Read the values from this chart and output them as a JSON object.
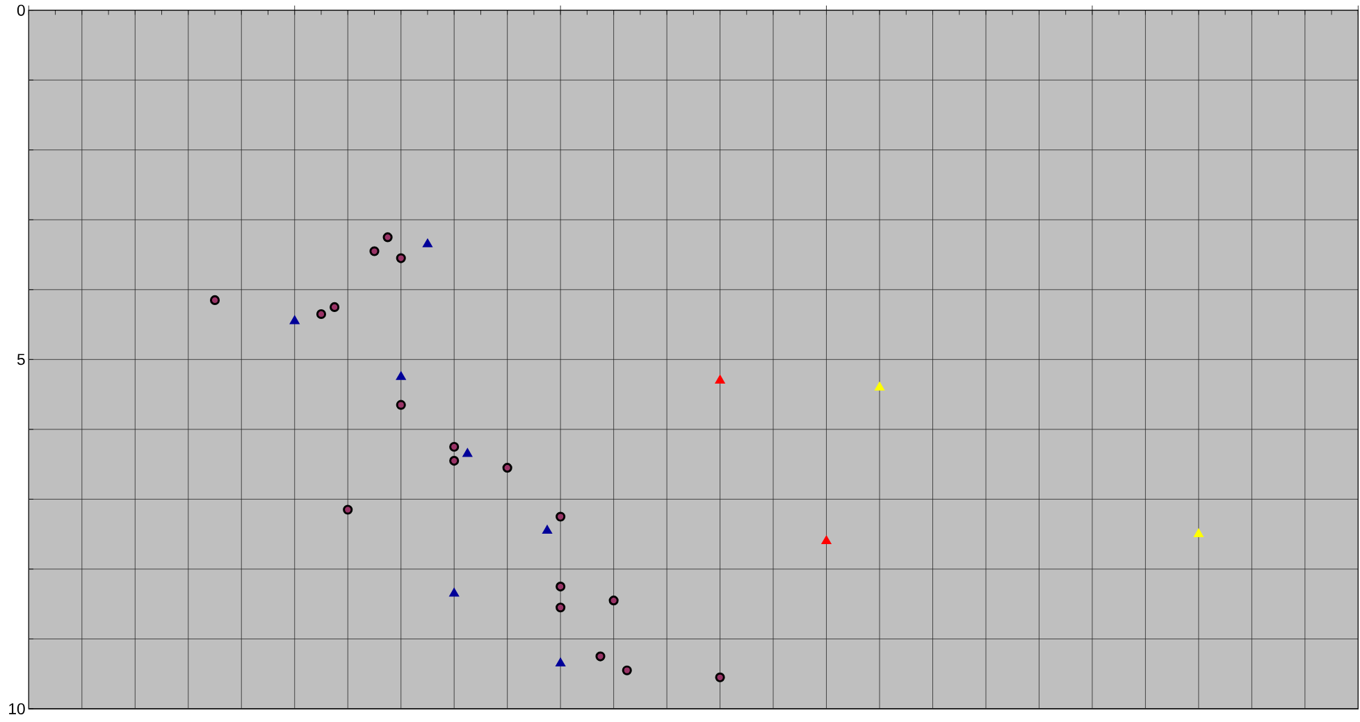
{
  "chart_data": {
    "type": "scatter",
    "tick_labels": "y",
    "grid": true,
    "categories": [
      null,
      null,
      null,
      null,
      null,
      null,
      null,
      null,
      null,
      null,
      null,
      null,
      null,
      null,
      null,
      null,
      null,
      null,
      null,
      null,
      null,
      null,
      null,
      null,
      null,
      null,
      null,
      null,
      null,
      null,
      null,
      null,
      null,
      null,
      null,
      null,
      null,
      null,
      null,
      null,
      null,
      null,
      null,
      null,
      null,
      null,
      null,
      null,
      null,
      null,
      null,
      null,
      null,
      null,
      null,
      null,
      null,
      null,
      null,
      null,
      null,
      null,
      null,
      null,
      null,
      null,
      null,
      null,
      null,
      null,
      null,
      null,
      null,
      null,
      null,
      null,
      null,
      null,
      null,
      null,
      null,
      null,
      null,
      null,
      null,
      null,
      null,
      null,
      null,
      null,
      null,
      null,
      null,
      null,
      null,
      null,
      null,
      null,
      null,
      null,
      null
    ],
    "ylim": [
      10,
      0
    ],
    "yticks": [
      0,
      {
        "value": 1,
        "label": null
      },
      {
        "value": 2,
        "label": null
      },
      {
        "value": 3,
        "label": null
      },
      {
        "value": 4,
        "label": null
      },
      5,
      {
        "value": 6,
        "label": null
      },
      {
        "value": 7,
        "label": null
      },
      {
        "value": 8,
        "label": null
      },
      {
        "value": 9,
        "label": null
      },
      10
    ],
    "series": [
      {
        "color": "#993366",
        "marker": "circle",
        "values": [
          null,
          null,
          null,
          null,
          null,
          null,
          null,
          null,
          null,
          null,
          null,
          null,
          null,
          null,
          4.15,
          null,
          null,
          null,
          null,
          null,
          null,
          null,
          4.35,
          4.25,
          7.15,
          null,
          3.45,
          3.25,
          3.55,
          null,
          null,
          null,
          6.25,
          null,
          null,
          null,
          6.55,
          null,
          null,
          null,
          7.25,
          null,
          null,
          9.25,
          8.45,
          9.45,
          null,
          null,
          null,
          null,
          null,
          null,
          9.55,
          null,
          null,
          null,
          null,
          null,
          null,
          null,
          null,
          null,
          null,
          null,
          null,
          null,
          null,
          null,
          null,
          null,
          null,
          null,
          null,
          null,
          null,
          null,
          null,
          null,
          null,
          null,
          null,
          null,
          null,
          null,
          null,
          null,
          null,
          null,
          null,
          null,
          null,
          null,
          null,
          null,
          null,
          null,
          null,
          null,
          null,
          null,
          null
        ]
      },
      {
        "color": "#993366",
        "marker": "circle",
        "values": [
          null,
          null,
          null,
          null,
          null,
          null,
          null,
          null,
          null,
          null,
          null,
          null,
          null,
          null,
          null,
          null,
          null,
          null,
          null,
          null,
          null,
          null,
          null,
          null,
          null,
          null,
          null,
          null,
          5.65,
          null,
          null,
          null,
          6.45,
          null,
          null,
          null,
          null,
          null,
          null,
          null,
          8.25,
          null,
          null,
          null,
          null,
          null,
          null,
          null,
          null,
          null,
          null,
          null,
          null,
          null,
          null,
          null,
          null,
          null,
          null,
          null,
          null,
          null,
          null,
          null,
          null,
          null,
          null,
          null,
          null,
          null,
          null,
          null,
          null,
          null,
          null,
          null,
          null,
          null,
          null,
          null,
          null,
          null,
          null,
          null,
          null,
          null,
          null,
          null,
          null,
          null,
          null,
          null,
          null,
          null,
          null,
          null,
          null,
          null,
          null,
          null,
          null
        ]
      },
      {
        "color": "#993366",
        "marker": "circle",
        "values": [
          null,
          null,
          null,
          null,
          null,
          null,
          null,
          null,
          null,
          null,
          null,
          null,
          null,
          null,
          null,
          null,
          null,
          null,
          null,
          null,
          null,
          null,
          null,
          null,
          null,
          null,
          null,
          null,
          null,
          null,
          null,
          null,
          null,
          null,
          null,
          null,
          null,
          null,
          null,
          null,
          8.55,
          null,
          null,
          null,
          null,
          null,
          null,
          null,
          null,
          null,
          null,
          null,
          null,
          null,
          null,
          null,
          null,
          null,
          null,
          null,
          null,
          null,
          null,
          null,
          null,
          null,
          null,
          null,
          null,
          null,
          null,
          null,
          null,
          null,
          null,
          null,
          null,
          null,
          null,
          null,
          null,
          null,
          null,
          null,
          null,
          null,
          null,
          null,
          null,
          null,
          null,
          null,
          null,
          null,
          null,
          null,
          null,
          null,
          null,
          null,
          null
        ]
      },
      {
        "color": "#000099",
        "marker": "triangle",
        "values": [
          null,
          null,
          null,
          null,
          null,
          null,
          null,
          null,
          null,
          null,
          null,
          null,
          null,
          null,
          null,
          null,
          null,
          null,
          null,
          null,
          4.45,
          null,
          null,
          null,
          null,
          null,
          null,
          null,
          5.25,
          null,
          3.35,
          null,
          8.35,
          6.35,
          null,
          null,
          null,
          null,
          null,
          7.45,
          9.35,
          null,
          null,
          null,
          null,
          null,
          null,
          null,
          null,
          null,
          null,
          null,
          null,
          null,
          null,
          null,
          null,
          null,
          null,
          null,
          null,
          null,
          null,
          null,
          null,
          null,
          null,
          null,
          null,
          null,
          null,
          null,
          null,
          null,
          null,
          null,
          null,
          null,
          null,
          null,
          null,
          null,
          null,
          null,
          null,
          null,
          null,
          null,
          null,
          null,
          null,
          null,
          null,
          null,
          null,
          null,
          null,
          null,
          null,
          null,
          null
        ]
      },
      {
        "color": "#ff0000",
        "marker": "triangle",
        "values": [
          null,
          null,
          null,
          null,
          null,
          null,
          null,
          null,
          null,
          null,
          null,
          null,
          null,
          null,
          null,
          null,
          null,
          null,
          null,
          null,
          null,
          null,
          null,
          null,
          null,
          null,
          null,
          null,
          null,
          null,
          null,
          null,
          null,
          null,
          null,
          null,
          null,
          null,
          null,
          null,
          null,
          null,
          null,
          null,
          null,
          null,
          null,
          null,
          null,
          null,
          null,
          null,
          5.3,
          null,
          null,
          null,
          null,
          null,
          null,
          null,
          7.6,
          null,
          null,
          null,
          null,
          null,
          null,
          null,
          null,
          null,
          null,
          null,
          null,
          null,
          null,
          null,
          null,
          null,
          null,
          null,
          null,
          null,
          null,
          null,
          null,
          null,
          null,
          null,
          null,
          null,
          null,
          null,
          null,
          null,
          null,
          null,
          null,
          null,
          null,
          null,
          null
        ]
      },
      {
        "color": "#ffff00",
        "marker": "triangle",
        "values": [
          null,
          null,
          null,
          null,
          null,
          null,
          null,
          null,
          null,
          null,
          null,
          null,
          null,
          null,
          null,
          null,
          null,
          null,
          null,
          null,
          null,
          null,
          null,
          null,
          null,
          null,
          null,
          null,
          null,
          null,
          null,
          null,
          null,
          null,
          null,
          null,
          null,
          null,
          null,
          null,
          null,
          null,
          null,
          null,
          null,
          null,
          null,
          null,
          null,
          null,
          null,
          null,
          null,
          null,
          null,
          null,
          null,
          null,
          null,
          null,
          null,
          null,
          null,
          null,
          5.4,
          null,
          null,
          null,
          null,
          null,
          null,
          null,
          null,
          null,
          null,
          null,
          null,
          null,
          null,
          null,
          null,
          null,
          null,
          null,
          null,
          null,
          null,
          null,
          7.5,
          null,
          null,
          null,
          null,
          null,
          null,
          null,
          null,
          null,
          null,
          null,
          null
        ]
      }
    ]
  }
}
